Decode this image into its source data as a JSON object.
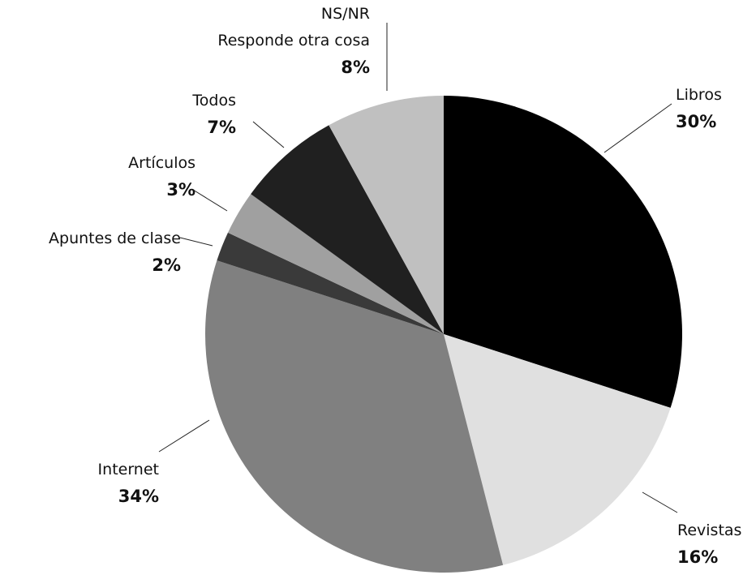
{
  "chart_data": {
    "type": "pie",
    "categories": [
      "Libros",
      "Revistas",
      "Internet",
      "Apuntes de clase",
      "Artículos",
      "Todos",
      "NS/NR\nResponde otra cosa"
    ],
    "values": [
      30,
      16,
      34,
      2,
      3,
      7,
      8
    ],
    "value_labels": [
      "30%",
      "16%",
      "34%",
      "2%",
      "3%",
      "7%",
      "8%"
    ],
    "colors": [
      "#000000",
      "#e0e0e0",
      "#808080",
      "#3a3a3a",
      "#a0a0a0",
      "#202020",
      "#c0c0c0"
    ]
  }
}
